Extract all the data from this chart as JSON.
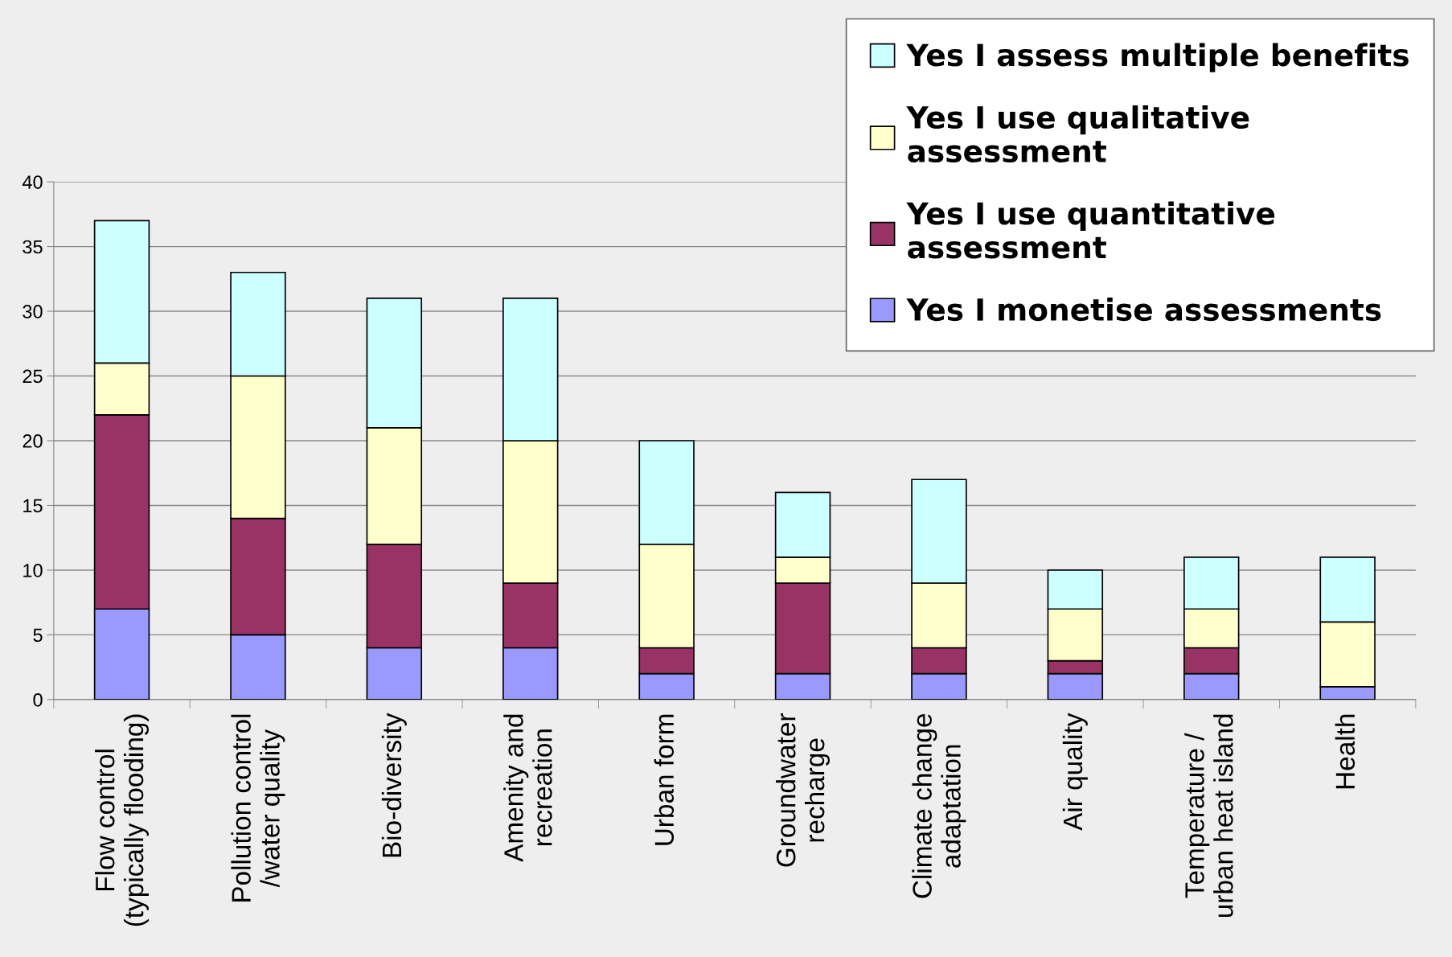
{
  "chart_data": {
    "type": "bar",
    "stacked": true,
    "categories": [
      "Flow control\n(typically flooding)",
      "Pollution control\n/water quality",
      "Bio-diversity",
      "Amenity and\nrecreation",
      "Urban form",
      "Groundwater\nrecharge",
      "Climate change\nadaptation",
      "Air quality",
      "Temperature /\nurban heat island",
      "Health"
    ],
    "series": [
      {
        "name": "Yes I monetise assessments",
        "color": "#9999ff",
        "values": [
          7,
          5,
          4,
          4,
          2,
          2,
          2,
          2,
          2,
          1
        ]
      },
      {
        "name": "Yes I use quantitative\nassessment",
        "color": "#993366",
        "values": [
          15,
          9,
          8,
          5,
          2,
          7,
          2,
          1,
          2,
          0
        ]
      },
      {
        "name": "Yes I use qualitative\nassessment",
        "color": "#ffffcc",
        "values": [
          4,
          11,
          9,
          11,
          8,
          2,
          5,
          4,
          3,
          5
        ]
      },
      {
        "name": "Yes I assess multiple benefits",
        "color": "#ccffff",
        "values": [
          11,
          8,
          10,
          11,
          8,
          5,
          8,
          3,
          4,
          5
        ]
      }
    ],
    "ylim": [
      0,
      40
    ],
    "yticks": [
      0,
      5,
      10,
      15,
      20,
      25,
      30,
      35,
      40
    ],
    "grid": "y",
    "legend": "top right"
  }
}
